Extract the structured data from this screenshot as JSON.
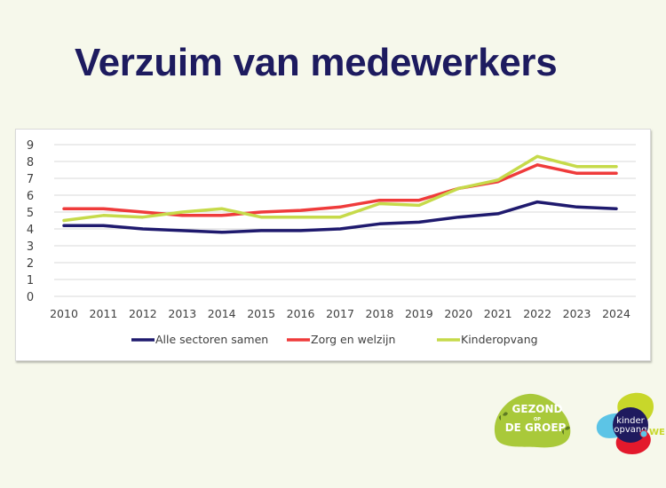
{
  "slide": {
    "title": "Verzuim van medewerkers",
    "background": "#f6f8eb"
  },
  "chart_data": {
    "type": "line",
    "title": "",
    "xlabel": "",
    "ylabel": "",
    "ylim": [
      0,
      9
    ],
    "yticks": [
      0,
      1,
      2,
      3,
      4,
      5,
      6,
      7,
      8,
      9
    ],
    "grid": true,
    "legend_position": "bottom",
    "categories": [
      "2010",
      "2011",
      "2012",
      "2013",
      "2014",
      "2015",
      "2016",
      "2017",
      "2018",
      "2019",
      "2020",
      "2021",
      "2022",
      "2023",
      "2024"
    ],
    "series": [
      {
        "name": "Alle sectoren samen",
        "color": "#1f1a6e",
        "values": [
          4.2,
          4.2,
          4.0,
          3.9,
          3.8,
          3.9,
          3.9,
          4.0,
          4.3,
          4.4,
          4.7,
          4.9,
          5.6,
          5.3,
          5.2
        ]
      },
      {
        "name": "Zorg en welzijn",
        "color": "#ef3b3b",
        "values": [
          5.2,
          5.2,
          5.0,
          4.8,
          4.8,
          5.0,
          5.1,
          5.3,
          5.7,
          5.7,
          6.4,
          6.8,
          7.8,
          7.3,
          7.3
        ]
      },
      {
        "name": "Kinderopvang",
        "color": "#c6da4a",
        "values": [
          4.5,
          4.8,
          4.7,
          5.0,
          5.2,
          4.7,
          4.7,
          4.7,
          5.5,
          5.4,
          6.4,
          6.9,
          8.3,
          7.7,
          7.7
        ]
      }
    ]
  },
  "logos": {
    "gezond": {
      "line1": "GEZOND",
      "small": "OP",
      "line2": "DE GROEP",
      "color": "#a9c93a"
    },
    "kinderopvang": {
      "line1": "kinder",
      "line2": "opvang",
      "suffix": "WE"
    }
  }
}
